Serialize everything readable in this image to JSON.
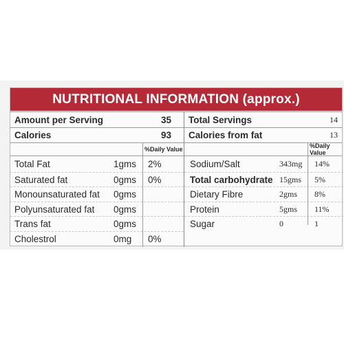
{
  "title": "NUTRITIONAL INFORMATION (approx.)",
  "summary": {
    "amount_per_serving_label": "Amount per Serving",
    "amount_per_serving_value": "35",
    "total_servings_label": "Total Servings",
    "total_servings_value": "14",
    "calories_label": "Calories",
    "calories_value": "93",
    "calories_from_fat_label": "Calories from fat",
    "calories_from_fat_value": "13"
  },
  "daily_value_header": "%Daily Value",
  "left_rows": [
    {
      "name": "Total Fat",
      "amount": "1gms",
      "dv": "2%"
    },
    {
      "name": "Saturated fat",
      "amount": "0gms",
      "dv": "0%"
    },
    {
      "name": "Monounsaturated fat",
      "amount": "0gms",
      "dv": ""
    },
    {
      "name": "Polyunsaturated fat",
      "amount": "0gms",
      "dv": ""
    },
    {
      "name": "Trans fat",
      "amount": "0gms",
      "dv": ""
    },
    {
      "name": "Cholestrol",
      "amount": "0mg",
      "dv": "0%"
    }
  ],
  "right_rows": [
    {
      "name": "Sodium/Salt",
      "amount": "343mg",
      "dv": "14%"
    },
    {
      "name": "Total carbohydrate",
      "amount": "15gms",
      "dv": "5%"
    },
    {
      "name": "Dietary Fibre",
      "amount": "2gms",
      "dv": "8%"
    },
    {
      "name": "Protein",
      "amount": "5gms",
      "dv": "11%"
    },
    {
      "name": "Sugar",
      "amount": "0",
      "dv": "1"
    }
  ],
  "colors": {
    "banner": "#b42a37",
    "banner_text": "#ffffff"
  }
}
